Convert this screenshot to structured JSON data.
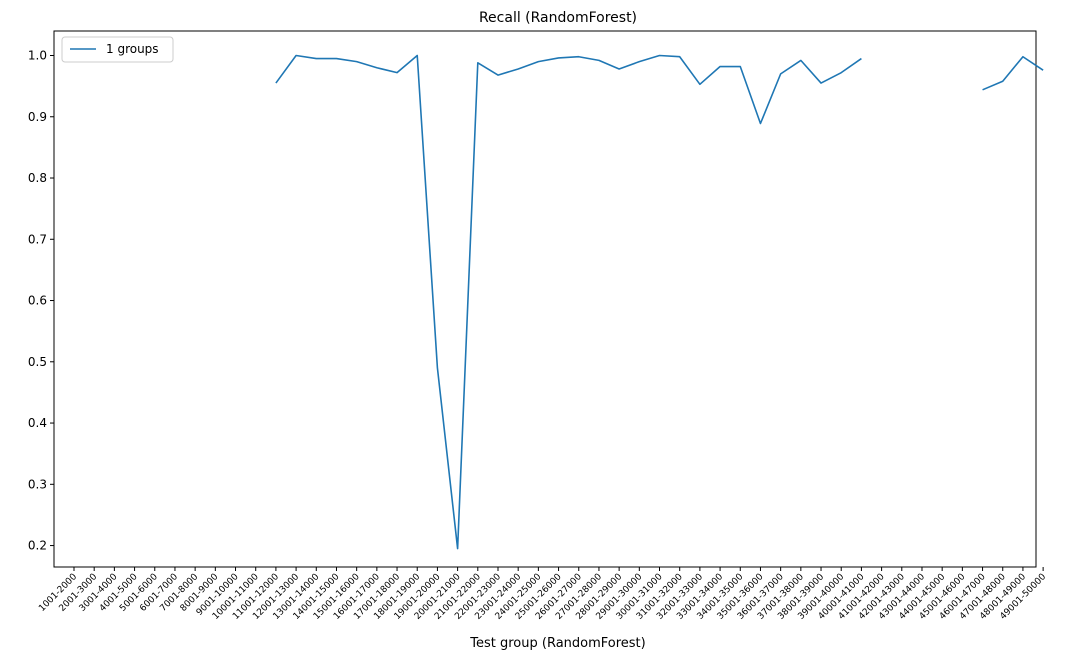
{
  "chart_data": {
    "type": "line",
    "title": "Recall (RandomForest)",
    "xlabel": "Test group (RandomForest)",
    "ylabel": "",
    "ylim": [
      0.165,
      1.04
    ],
    "yticks": [
      0.2,
      0.3,
      0.4,
      0.5,
      0.6,
      0.7,
      0.8,
      0.9,
      1.0
    ],
    "ytick_labels": [
      "0.2",
      "0.3",
      "0.4",
      "0.5",
      "0.6",
      "0.7",
      "0.8",
      "0.9",
      "1.0"
    ],
    "grid": false,
    "legend_position": "top-left",
    "categories": [
      "1001-2000",
      "2001-3000",
      "3001-4000",
      "4001-5000",
      "5001-6000",
      "6001-7000",
      "7001-8000",
      "8001-9000",
      "9001-10000",
      "10001-11000",
      "11001-12000",
      "12001-13000",
      "13001-14000",
      "14001-15000",
      "15001-16000",
      "16001-17000",
      "17001-18000",
      "18001-19000",
      "19001-20000",
      "20001-21000",
      "21001-22000",
      "22001-23000",
      "23001-24000",
      "24001-25000",
      "25001-26000",
      "26001-27000",
      "27001-28000",
      "28001-29000",
      "29001-30000",
      "30001-31000",
      "31001-32000",
      "32001-33000",
      "33001-34000",
      "34001-35000",
      "35001-36000",
      "36001-37000",
      "37001-38000",
      "38001-39000",
      "39001-40000",
      "40001-41000",
      "41001-42000",
      "42001-43000",
      "43001-44000",
      "44001-45000",
      "45001-46000",
      "46001-47000",
      "47001-48000",
      "48001-49000",
      "49001-50000"
    ],
    "series": [
      {
        "name": "1 groups",
        "color": "#1f77b4",
        "values": [
          null,
          null,
          null,
          null,
          null,
          null,
          null,
          null,
          null,
          null,
          0.955,
          1.0,
          0.995,
          0.995,
          0.99,
          0.98,
          0.972,
          1.0,
          0.49,
          0.195,
          0.988,
          0.968,
          0.978,
          0.99,
          0.996,
          0.998,
          0.992,
          0.978,
          0.99,
          1.0,
          0.998,
          0.953,
          0.982,
          0.982,
          0.889,
          0.97,
          0.992,
          0.955,
          0.972,
          0.995,
          null,
          null,
          null,
          null,
          null,
          0.944,
          0.958,
          0.998,
          0.976
        ]
      }
    ]
  }
}
